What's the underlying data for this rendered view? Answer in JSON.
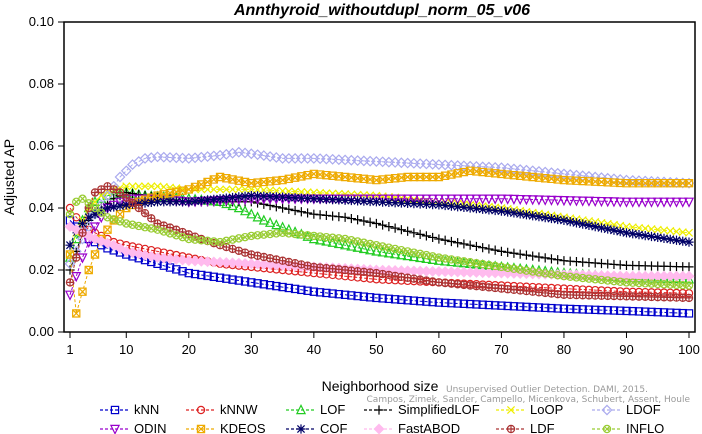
{
  "chart_data": {
    "type": "line",
    "title": "Annthyroid_withoutdupl_norm_05_v06",
    "xlabel": "Neighborhood size",
    "ylabel": "Adjusted AP",
    "xlim": [
      1,
      100
    ],
    "ylim": [
      0,
      0.1
    ],
    "xticks": [
      1,
      10,
      20,
      30,
      40,
      50,
      60,
      70,
      80,
      90,
      100
    ],
    "yticks": [
      "0.00",
      "0.02",
      "0.04",
      "0.06",
      "0.08",
      "0.10"
    ],
    "legend_position": "bottom",
    "watermark": [
      "Unsupervised Outlier Detection. DAMI, 2015.",
      "Campos, Zimek, Sander, Campello, Micenkova, Schubert, Assent, Houle"
    ],
    "series": [
      {
        "name": "kNN",
        "color": "#0000cc",
        "marker": "square",
        "points": [
          [
            1,
            0.036
          ],
          [
            2,
            0.034
          ],
          [
            3,
            0.032
          ],
          [
            4,
            0.03
          ],
          [
            5,
            0.029
          ],
          [
            7,
            0.027
          ],
          [
            10,
            0.025
          ],
          [
            15,
            0.022
          ],
          [
            20,
            0.019
          ],
          [
            30,
            0.016
          ],
          [
            40,
            0.013
          ],
          [
            50,
            0.011
          ],
          [
            60,
            0.0095
          ],
          [
            70,
            0.0085
          ],
          [
            80,
            0.0075
          ],
          [
            90,
            0.0068
          ],
          [
            100,
            0.006
          ]
        ]
      },
      {
        "name": "kNNW",
        "color": "#dd2222",
        "marker": "circle",
        "points": [
          [
            1,
            0.04
          ],
          [
            2,
            0.037
          ],
          [
            3,
            0.035
          ],
          [
            4,
            0.033
          ],
          [
            6,
            0.031
          ],
          [
            8,
            0.029
          ],
          [
            10,
            0.028
          ],
          [
            15,
            0.026
          ],
          [
            20,
            0.024
          ],
          [
            25,
            0.022
          ],
          [
            30,
            0.021
          ],
          [
            40,
            0.019
          ],
          [
            50,
            0.017
          ],
          [
            60,
            0.016
          ],
          [
            70,
            0.015
          ],
          [
            80,
            0.014
          ],
          [
            90,
            0.013
          ],
          [
            100,
            0.0125
          ]
        ]
      },
      {
        "name": "LOF",
        "color": "#22cc22",
        "marker": "triangle-up",
        "points": [
          [
            1,
            0.024
          ],
          [
            2,
            0.03
          ],
          [
            3,
            0.036
          ],
          [
            4,
            0.04
          ],
          [
            5,
            0.042
          ],
          [
            7,
            0.044
          ],
          [
            10,
            0.045
          ],
          [
            13,
            0.044
          ],
          [
            20,
            0.043
          ],
          [
            25,
            0.042
          ],
          [
            28,
            0.04
          ],
          [
            32,
            0.036
          ],
          [
            40,
            0.03
          ],
          [
            50,
            0.026
          ],
          [
            60,
            0.023
          ],
          [
            70,
            0.021
          ],
          [
            80,
            0.019
          ],
          [
            90,
            0.0175
          ],
          [
            100,
            0.017
          ]
        ]
      },
      {
        "name": "SimplifiedLOF",
        "color": "#000000",
        "marker": "plus",
        "points": [
          [
            1,
            0.02
          ],
          [
            2,
            0.026
          ],
          [
            3,
            0.032
          ],
          [
            4,
            0.036
          ],
          [
            6,
            0.04
          ],
          [
            8,
            0.043
          ],
          [
            10,
            0.045
          ],
          [
            13,
            0.044
          ],
          [
            20,
            0.042
          ],
          [
            30,
            0.042
          ],
          [
            35,
            0.04
          ],
          [
            40,
            0.038
          ],
          [
            45,
            0.037
          ],
          [
            50,
            0.035
          ],
          [
            60,
            0.03
          ],
          [
            70,
            0.026
          ],
          [
            80,
            0.023
          ],
          [
            90,
            0.0215
          ],
          [
            100,
            0.021
          ]
        ]
      },
      {
        "name": "LoOP",
        "color": "#eeee00",
        "marker": "x",
        "points": [
          [
            1,
            0.025
          ],
          [
            2,
            0.032
          ],
          [
            4,
            0.04
          ],
          [
            6,
            0.044
          ],
          [
            8,
            0.046
          ],
          [
            10,
            0.047
          ],
          [
            15,
            0.047
          ],
          [
            20,
            0.046
          ],
          [
            30,
            0.046
          ],
          [
            40,
            0.045
          ],
          [
            50,
            0.044
          ],
          [
            60,
            0.042
          ],
          [
            70,
            0.04
          ],
          [
            80,
            0.037
          ],
          [
            90,
            0.034
          ],
          [
            100,
            0.032
          ]
        ]
      },
      {
        "name": "LDOF",
        "color": "#aaaaee",
        "marker": "diamond",
        "points": [
          [
            1,
            0.022
          ],
          [
            3,
            0.03
          ],
          [
            5,
            0.038
          ],
          [
            7,
            0.044
          ],
          [
            9,
            0.05
          ],
          [
            11,
            0.054
          ],
          [
            13,
            0.056
          ],
          [
            15,
            0.0565
          ],
          [
            20,
            0.056
          ],
          [
            25,
            0.057
          ],
          [
            28,
            0.058
          ],
          [
            30,
            0.0575
          ],
          [
            35,
            0.056
          ],
          [
            40,
            0.056
          ],
          [
            50,
            0.055
          ],
          [
            60,
            0.054
          ],
          [
            70,
            0.053
          ],
          [
            80,
            0.051
          ],
          [
            90,
            0.049
          ],
          [
            100,
            0.048
          ]
        ]
      },
      {
        "name": "ODIN",
        "color": "#9900cc",
        "marker": "triangle-down",
        "points": [
          [
            1,
            0.012
          ],
          [
            3,
            0.024
          ],
          [
            5,
            0.034
          ],
          [
            7,
            0.04
          ],
          [
            10,
            0.043
          ],
          [
            15,
            0.043
          ],
          [
            20,
            0.042
          ],
          [
            30,
            0.043
          ],
          [
            40,
            0.043
          ],
          [
            50,
            0.043
          ],
          [
            60,
            0.043
          ],
          [
            70,
            0.043
          ],
          [
            80,
            0.0425
          ],
          [
            90,
            0.042
          ],
          [
            100,
            0.042
          ]
        ]
      },
      {
        "name": "KDEOS",
        "color": "#eeaa00",
        "marker": "square-x",
        "points": [
          [
            1,
            0.025
          ],
          [
            2,
            0.006
          ],
          [
            3,
            0.013
          ],
          [
            4,
            0.02
          ],
          [
            5,
            0.025
          ],
          [
            6,
            0.03
          ],
          [
            8,
            0.036
          ],
          [
            10,
            0.04
          ],
          [
            12,
            0.042
          ],
          [
            15,
            0.044
          ],
          [
            20,
            0.046
          ],
          [
            25,
            0.05
          ],
          [
            30,
            0.048
          ],
          [
            35,
            0.049
          ],
          [
            40,
            0.051
          ],
          [
            45,
            0.05
          ],
          [
            50,
            0.049
          ],
          [
            55,
            0.05
          ],
          [
            60,
            0.05
          ],
          [
            65,
            0.052
          ],
          [
            70,
            0.051
          ],
          [
            75,
            0.05
          ],
          [
            80,
            0.049
          ],
          [
            90,
            0.048
          ],
          [
            100,
            0.048
          ]
        ]
      },
      {
        "name": "COF",
        "color": "#000066",
        "marker": "star",
        "points": [
          [
            1,
            0.028
          ],
          [
            2,
            0.033
          ],
          [
            4,
            0.037
          ],
          [
            7,
            0.04
          ],
          [
            10,
            0.041
          ],
          [
            15,
            0.042
          ],
          [
            20,
            0.042
          ],
          [
            25,
            0.043
          ],
          [
            30,
            0.044
          ],
          [
            40,
            0.043
          ],
          [
            50,
            0.042
          ],
          [
            60,
            0.041
          ],
          [
            70,
            0.039
          ],
          [
            80,
            0.036
          ],
          [
            90,
            0.032
          ],
          [
            100,
            0.029
          ]
        ]
      },
      {
        "name": "FastABOD",
        "color": "#ffbbee",
        "marker": "diamond-filled",
        "points": [
          [
            1,
            0.034
          ],
          [
            2,
            0.033
          ],
          [
            3,
            0.032
          ],
          [
            5,
            0.03
          ],
          [
            8,
            0.028
          ],
          [
            10,
            0.026
          ],
          [
            15,
            0.024
          ],
          [
            20,
            0.023
          ],
          [
            30,
            0.022
          ],
          [
            40,
            0.021
          ],
          [
            50,
            0.02
          ],
          [
            60,
            0.0195
          ],
          [
            70,
            0.019
          ],
          [
            80,
            0.0185
          ],
          [
            90,
            0.018
          ],
          [
            100,
            0.018
          ]
        ]
      },
      {
        "name": "LDF",
        "color": "#aa3333",
        "marker": "circle-plus",
        "points": [
          [
            1,
            0.016
          ],
          [
            2,
            0.024
          ],
          [
            3,
            0.032
          ],
          [
            4,
            0.04
          ],
          [
            5,
            0.045
          ],
          [
            7,
            0.047
          ],
          [
            9,
            0.045
          ],
          [
            12,
            0.04
          ],
          [
            15,
            0.035
          ],
          [
            18,
            0.033
          ],
          [
            22,
            0.03
          ],
          [
            25,
            0.028
          ],
          [
            30,
            0.025
          ],
          [
            40,
            0.021
          ],
          [
            50,
            0.019
          ],
          [
            60,
            0.016
          ],
          [
            70,
            0.014
          ],
          [
            80,
            0.012
          ],
          [
            90,
            0.0115
          ],
          [
            100,
            0.011
          ]
        ]
      },
      {
        "name": "INFLO",
        "color": "#99cc33",
        "marker": "circle-x",
        "points": [
          [
            1,
            0.038
          ],
          [
            2,
            0.042
          ],
          [
            3,
            0.043
          ],
          [
            5,
            0.04
          ],
          [
            7,
            0.037
          ],
          [
            10,
            0.035
          ],
          [
            15,
            0.033
          ],
          [
            20,
            0.03
          ],
          [
            25,
            0.029
          ],
          [
            30,
            0.031
          ],
          [
            35,
            0.032
          ],
          [
            40,
            0.031
          ],
          [
            45,
            0.03
          ],
          [
            50,
            0.028
          ],
          [
            55,
            0.026
          ],
          [
            60,
            0.024
          ],
          [
            70,
            0.021
          ],
          [
            80,
            0.018
          ],
          [
            90,
            0.016
          ],
          [
            100,
            0.015
          ]
        ]
      }
    ]
  }
}
